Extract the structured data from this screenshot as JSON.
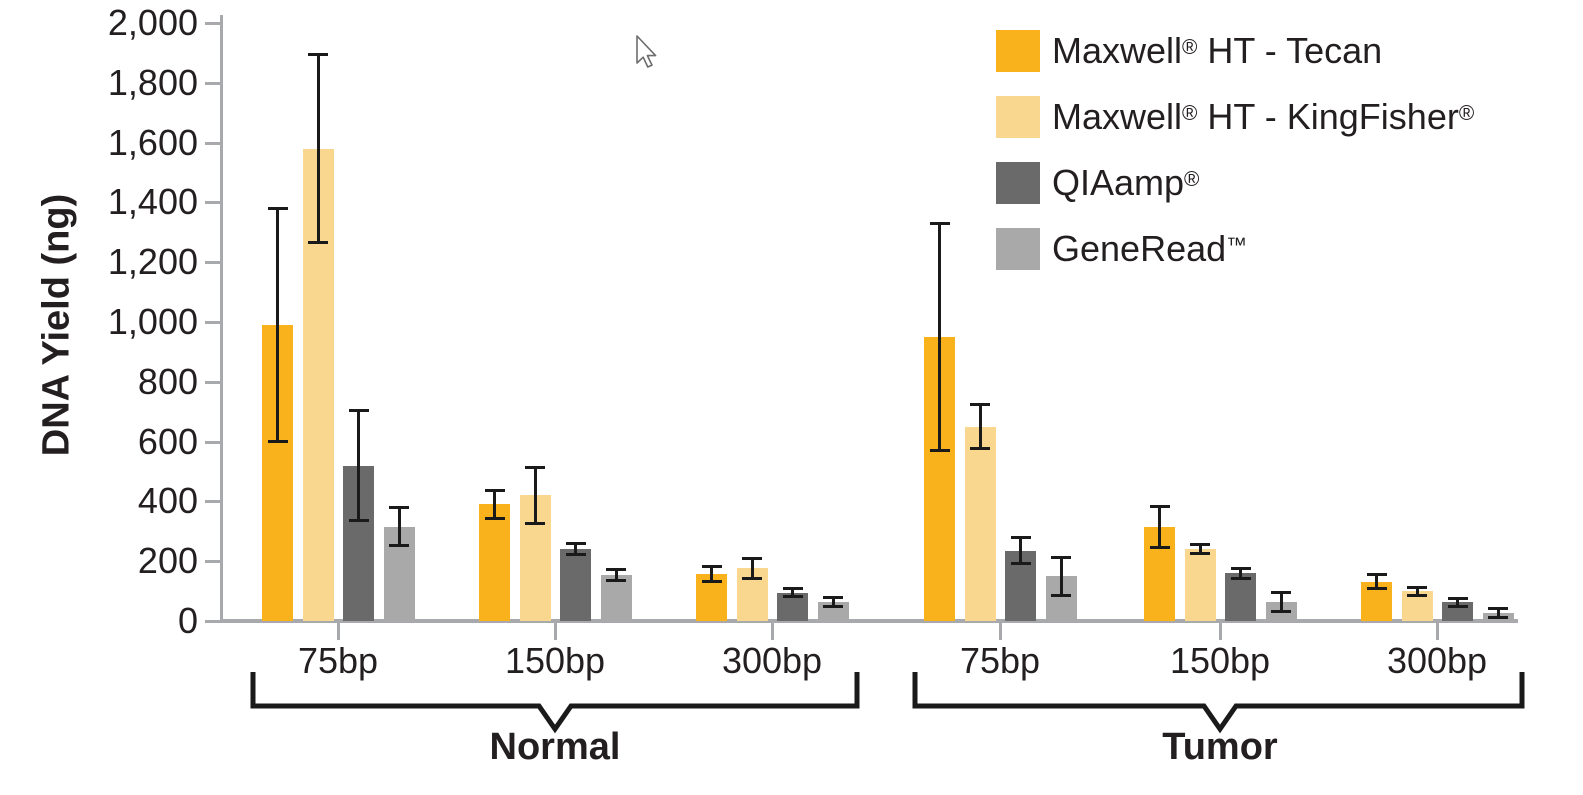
{
  "chart_data": {
    "type": "bar",
    "title": "",
    "ylabel": "DNA Yield (ng)",
    "xlabel": "",
    "ylim": [
      0,
      2000
    ],
    "ytick_step": 200,
    "ytick_labels": [
      "0",
      "200",
      "400",
      "600",
      "800",
      "1,000",
      "1,200",
      "1,400",
      "1,600",
      "1,800",
      "2,000"
    ],
    "grid": false,
    "legend_position": "top-right",
    "error_bars": true,
    "series": [
      {
        "name": "Maxwell® HT - Tecan",
        "color": "#F9B21B"
      },
      {
        "name": "Maxwell® HT - KingFisher®",
        "color": "#FAD78F"
      },
      {
        "name": "QIAamp®",
        "color": "#6A6A6A"
      },
      {
        "name": "GeneRead™",
        "color": "#A9A9A9"
      }
    ],
    "sections": [
      {
        "label": "Normal",
        "groups": [
          {
            "label": "75bp",
            "values": [
              990,
              1580,
              520,
              315
            ],
            "errors": [
              390,
              315,
              185,
              65
            ]
          },
          {
            "label": "150bp",
            "values": [
              390,
              420,
              240,
              155
            ],
            "errors": [
              48,
              95,
              20,
              20
            ]
          },
          {
            "label": "300bp",
            "values": [
              158,
              176,
              95,
              64
            ],
            "errors": [
              27,
              36,
              16,
              16
            ]
          }
        ]
      },
      {
        "label": "Tumor",
        "groups": [
          {
            "label": "75bp",
            "values": [
              950,
              650,
              235,
              150
            ],
            "errors": [
              380,
              75,
              45,
              65
            ]
          },
          {
            "label": "150bp",
            "values": [
              315,
              242,
              160,
              64
            ],
            "errors": [
              70,
              17,
              18,
              33
            ]
          },
          {
            "label": "300bp",
            "values": [
              131,
              99,
              62,
              27
            ],
            "errors": [
              25,
              15,
              16,
              16
            ]
          }
        ]
      }
    ],
    "colors": {
      "axis": "#A7A9AC",
      "error_bar": "#1A1A1A",
      "text": "#231F20",
      "bracket": "#1A1A1A"
    }
  },
  "cursor": {
    "visible": true
  }
}
